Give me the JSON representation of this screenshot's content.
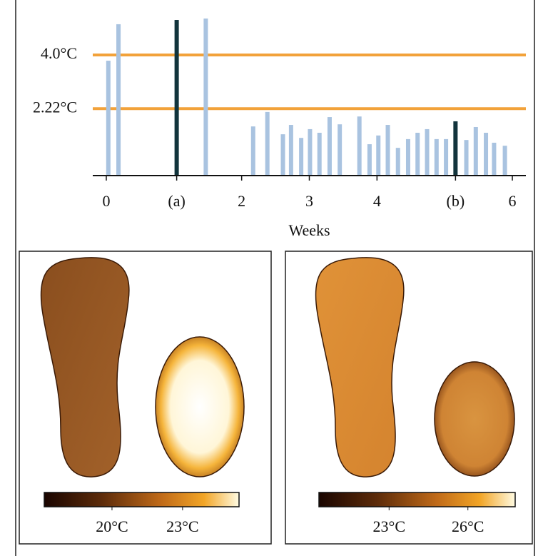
{
  "chart_data": [
    {
      "type": "bar",
      "x_label": "Weeks",
      "x": [
        0.03,
        0.18,
        1.04,
        1.47,
        2.17,
        2.38,
        2.61,
        2.73,
        2.88,
        3.01,
        3.15,
        3.3,
        3.45,
        3.74,
        3.89,
        4.02,
        4.16,
        4.31,
        4.46,
        4.6,
        4.74,
        4.88,
        5.02,
        5.16,
        5.32,
        5.46,
        5.61,
        5.73,
        5.89
      ],
      "values": [
        3.81,
        5.02,
        5.16,
        5.21,
        1.63,
        2.11,
        1.37,
        1.68,
        1.25,
        1.54,
        1.42,
        1.94,
        1.7,
        1.96,
        1.04,
        1.33,
        1.68,
        0.92,
        1.21,
        1.42,
        1.54,
        1.21,
        1.21,
        1.8,
        1.18,
        1.61,
        1.42,
        1.09,
        0.99
      ],
      "colors": [
        "#a9c3e0",
        "#a9c3e0",
        "#12343c",
        "#a9c3e0",
        "#a9c3e0",
        "#a9c3e0",
        "#a9c3e0",
        "#a9c3e0",
        "#a9c3e0",
        "#a9c3e0",
        "#a9c3e0",
        "#a9c3e0",
        "#a9c3e0",
        "#a9c3e0",
        "#a9c3e0",
        "#a9c3e0",
        "#a9c3e0",
        "#a9c3e0",
        "#a9c3e0",
        "#a9c3e0",
        "#a9c3e0",
        "#a9c3e0",
        "#a9c3e0",
        "#12343c",
        "#a9c3e0",
        "#a9c3e0",
        "#a9c3e0",
        "#a9c3e0",
        "#a9c3e0"
      ],
      "xlim": [
        -0.2,
        6.2
      ],
      "xticks": [
        0,
        {
          "value": 1.04,
          "label": "(a)"
        },
        2,
        3,
        4,
        {
          "value": 5.16,
          "label": "(b)"
        },
        6
      ],
      "ylim": [
        0,
        5.35
      ],
      "yticks": [
        {
          "value": 2.22,
          "label": "2.22°C"
        },
        {
          "value": 4.0,
          "label": "4.0°C"
        }
      ],
      "grid": true,
      "grid_color": "#f2a23a"
    },
    {
      "type": "thermal",
      "clim": [
        17.12,
        25.4
      ],
      "cticks": [
        {
          "value": 20,
          "label": "20°C"
        },
        {
          "value": 23,
          "label": "23°C"
        }
      ]
    },
    {
      "type": "thermal",
      "clim": [
        20.33,
        27.8
      ],
      "cticks": [
        {
          "value": 23,
          "label": "23°C"
        },
        {
          "value": 26,
          "label": "26°C"
        }
      ]
    }
  ]
}
